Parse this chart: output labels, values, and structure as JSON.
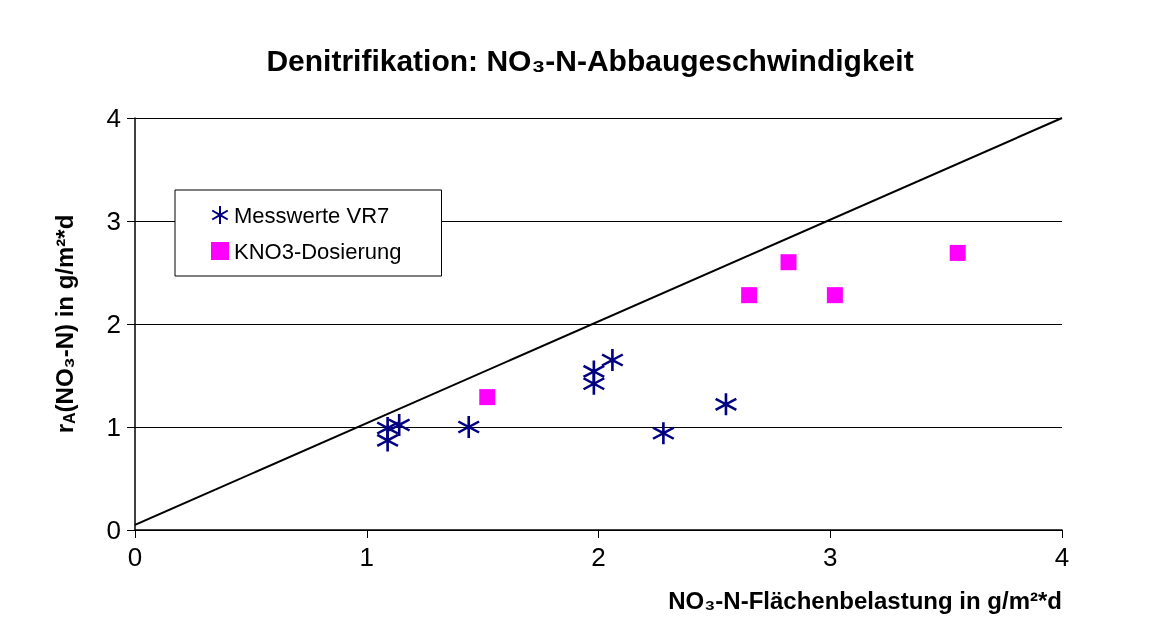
{
  "chart_data": {
    "type": "scatter",
    "title": "Denitrifikation: NO₃-N-Abbaugeschwindigkeit",
    "xlabel": "NO₃-N-Flächenbelastung in g/m²*d",
    "ylabel": "r$_{A}$(NO₃-N) in g/m²*d",
    "xlim": [
      0,
      4
    ],
    "xticks": [
      0,
      1,
      2,
      3,
      4
    ],
    "ylim": [
      0,
      4
    ],
    "yticks": [
      0,
      1,
      2,
      3,
      4
    ],
    "grid": "y",
    "legend": "top left",
    "series": [
      {
        "name": "Messwerte VR7",
        "color": "#000080",
        "marker": "star",
        "x": [
          1.09,
          1.09,
          1.14,
          1.44,
          1.98,
          1.98,
          2.06,
          2.28,
          2.55
        ],
        "values": [
          0.99,
          0.87,
          1.02,
          1.0,
          1.54,
          1.42,
          1.65,
          0.94,
          1.22
        ]
      },
      {
        "name": "KNO3-Dosierung",
        "color": "#ff00ff",
        "marker": "square",
        "x": [
          1.52,
          2.65,
          2.82,
          3.02,
          3.55
        ],
        "values": [
          1.29,
          2.28,
          2.6,
          2.28,
          2.69
        ]
      },
      {
        "type": "line",
        "color": "#000000",
        "marker": "none",
        "x": [
          0,
          4
        ],
        "values": [
          0.05,
          4
        ]
      }
    ]
  }
}
